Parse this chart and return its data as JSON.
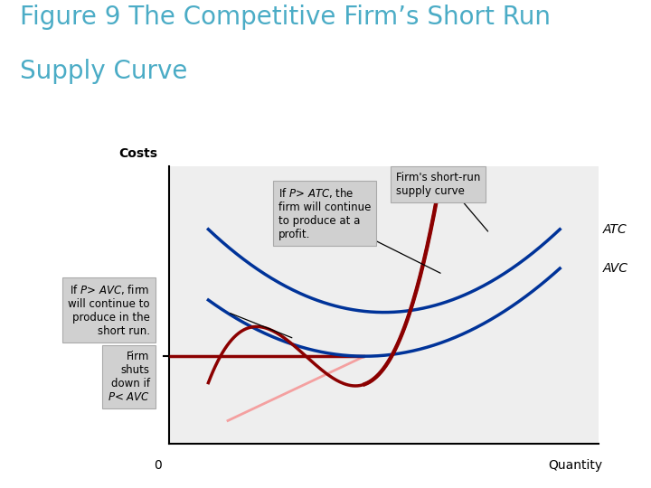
{
  "title_line1": "Figure 9 The Competitive Firm’s Short Run",
  "title_line2": "Supply Curve",
  "title_color": "#4bacc6",
  "title_fontsize": 20,
  "xlabel": "Quantity",
  "ylabel": "Costs",
  "background_color": "#ffffff",
  "plot_bg_color": "#eeeeee",
  "mc_color": "#8b0000",
  "atc_color": "#003399",
  "avc_color": "#003399",
  "supply_color": "#8b0000",
  "pink_color": "#f4a0a0",
  "horizontal_line_color": "#8b0000",
  "annotation_box_color": "#d0d0d0",
  "curve_linewidth": 2.5,
  "supply_linewidth": 3.2
}
